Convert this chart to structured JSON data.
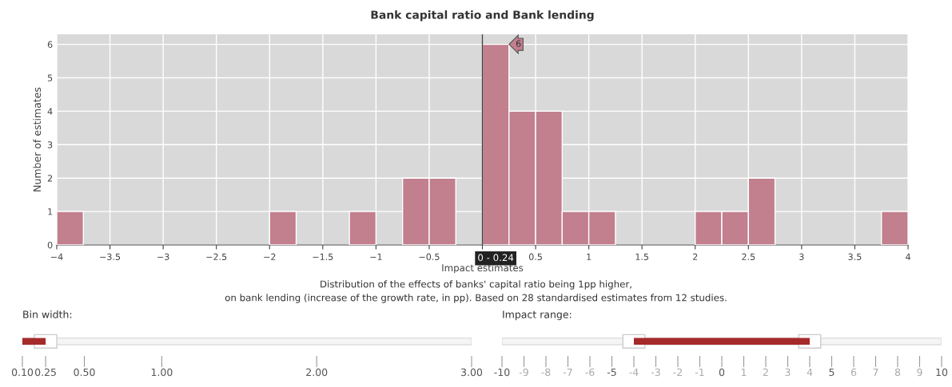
{
  "chart_data": [
    {
      "type": "histogram",
      "title": "Bank capital ratio and Bank lending",
      "xlabel": "Impact estimates",
      "ylabel": "Number of estimates",
      "bins": [
        -4,
        -3.75,
        -3.5,
        -3.25,
        -3,
        -2.75,
        -2.5,
        -2.25,
        -2,
        -1.75,
        -1.5,
        -1.25,
        -1,
        -0.75,
        -0.5,
        -0.25,
        0,
        0.25,
        0.5,
        0.75,
        1,
        1.25,
        1.5,
        1.75,
        2,
        2.25,
        2.5,
        2.75,
        3,
        3.25,
        3.5,
        3.75,
        4
      ],
      "values": [
        1,
        0,
        0,
        0,
        0,
        0,
        0,
        0,
        1,
        0,
        0,
        1,
        0,
        2,
        2,
        0,
        6,
        4,
        4,
        1,
        1,
        0,
        0,
        0,
        1,
        1,
        2,
        0,
        0,
        0,
        0,
        1
      ],
      "color": "#c27f8e",
      "xlim": [
        -4,
        4
      ],
      "xticks": [
        {
          "value": -4,
          "label": "−4"
        },
        {
          "value": -3.5,
          "label": "−3.5"
        },
        {
          "value": -3,
          "label": "−3"
        },
        {
          "value": -2.5,
          "label": "−2.5"
        },
        {
          "value": -2,
          "label": "−2"
        },
        {
          "value": -1.5,
          "label": "−1.5"
        },
        {
          "value": -1,
          "label": "−1"
        },
        {
          "value": -0.5,
          "label": "−0.5"
        },
        {
          "value": 0,
          "label": null
        },
        0.5,
        1,
        1.5,
        2,
        2.5,
        3,
        3.5,
        4
      ],
      "ylim": [
        0,
        6.3
      ],
      "yticks": [
        0,
        1,
        2,
        3,
        4,
        5,
        6
      ],
      "grid": true,
      "ref_lines": [
        {
          "axis": "x",
          "value": 0,
          "color": "#444444"
        }
      ],
      "annotations": [
        {
          "text": "0 - 0.24",
          "x": 0.125,
          "y": 0
        },
        {
          "text": "6",
          "x": 0.25,
          "y": 6
        },
        "Distribution of the effects of banks' capital ratio being 1pp higher,",
        "on bank lending (increase of the growth rate, in pp). Based on 28 standardised estimates from 12 studies."
      ]
    },
    {
      "type": "bar",
      "orientation": "horizontal",
      "title": "Bin width:",
      "categories": [
        null
      ],
      "base": [
        0.1
      ],
      "values": [
        0.15
      ],
      "color": "#a52a2a",
      "xlim": [
        0.1,
        3
      ],
      "xticks": [
        {
          "value": 0.1,
          "label": "0.10"
        },
        {
          "value": 0.25,
          "label": "0.25"
        },
        {
          "value": 0.5,
          "label": "0.50"
        },
        {
          "value": 1,
          "label": "1.00"
        },
        {
          "value": 2,
          "label": "2.00"
        },
        {
          "value": 3,
          "label": "3.00"
        }
      ]
    },
    {
      "type": "bar",
      "orientation": "horizontal",
      "title": "Impact range:",
      "categories": [
        null
      ],
      "base": [
        -4
      ],
      "values": [
        8
      ],
      "color": "#a52a2a",
      "xlim": [
        -10,
        10
      ],
      "xticks": [
        {
          "value": -10,
          "label": "-10"
        },
        {
          "value": -9,
          "label": "-9"
        },
        {
          "value": -8,
          "label": "-8"
        },
        {
          "value": -7,
          "label": "-7"
        },
        {
          "value": -6,
          "label": "-6"
        },
        {
          "value": -5,
          "label": "-5"
        },
        {
          "value": -4,
          "label": "-4"
        },
        {
          "value": -3,
          "label": "-3"
        },
        {
          "value": -2,
          "label": "-2"
        },
        {
          "value": -1,
          "label": "-1"
        },
        {
          "value": 0,
          "label": "0"
        },
        {
          "value": 1,
          "label": "1"
        },
        {
          "value": 2,
          "label": "2"
        },
        {
          "value": 3,
          "label": "3"
        },
        {
          "value": 4,
          "label": "4"
        },
        {
          "value": 5,
          "label": "5"
        },
        {
          "value": 6,
          "label": "6"
        },
        {
          "value": 7,
          "label": "7"
        },
        {
          "value": 8,
          "label": "8"
        },
        {
          "value": 9,
          "label": "9"
        },
        {
          "value": 10,
          "label": "10"
        }
      ]
    }
  ]
}
